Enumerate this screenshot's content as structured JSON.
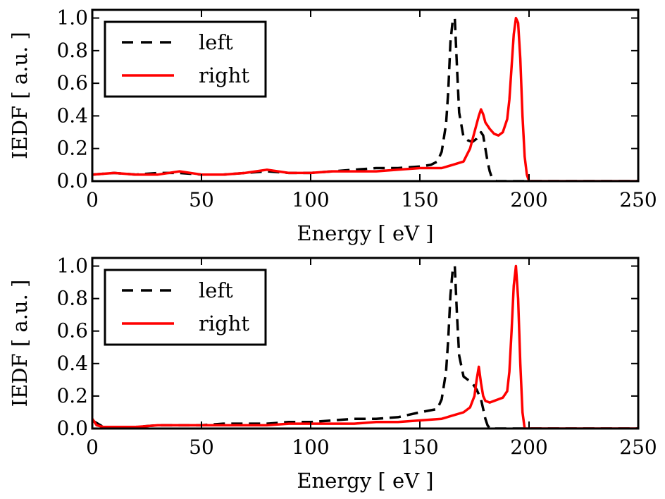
{
  "chart_data": [
    {
      "type": "line",
      "xlabel": "Energy [ eV ]",
      "ylabel": "IEDF [ a.u. ]",
      "xlim": [
        0,
        250
      ],
      "ylim": [
        0,
        1.05
      ],
      "xticks": [
        0,
        50,
        100,
        150,
        200,
        250
      ],
      "xtick_labels": [
        "0",
        "50",
        "100",
        "150",
        "200",
        "250"
      ],
      "yticks": [
        0.0,
        0.2,
        0.4,
        0.6,
        0.8,
        1.0
      ],
      "ytick_labels": [
        "0.0",
        "0.2",
        "0.4",
        "0.6",
        "0.8",
        "1.0"
      ],
      "legend_position": "top-left",
      "series": [
        {
          "name": "left",
          "color": "#000000",
          "style": "dashed",
          "x": [
            0,
            10,
            20,
            30,
            40,
            50,
            60,
            70,
            80,
            90,
            100,
            110,
            120,
            130,
            140,
            150,
            155,
            158,
            160,
            162,
            163,
            164,
            165,
            166,
            167,
            168,
            170,
            172,
            174,
            176,
            178,
            179,
            180,
            181,
            182,
            183,
            185,
            190,
            200,
            250
          ],
          "y": [
            0.04,
            0.05,
            0.04,
            0.05,
            0.05,
            0.04,
            0.04,
            0.05,
            0.06,
            0.05,
            0.05,
            0.06,
            0.07,
            0.08,
            0.08,
            0.09,
            0.1,
            0.12,
            0.18,
            0.35,
            0.55,
            0.85,
            0.98,
            1.0,
            0.7,
            0.42,
            0.27,
            0.25,
            0.24,
            0.26,
            0.3,
            0.28,
            0.2,
            0.12,
            0.06,
            0.02,
            0.0,
            0.0,
            0.0,
            0.0
          ]
        },
        {
          "name": "right",
          "color": "#ff0000",
          "style": "solid",
          "x": [
            0,
            10,
            20,
            30,
            40,
            50,
            60,
            70,
            80,
            90,
            100,
            110,
            120,
            130,
            140,
            150,
            160,
            165,
            170,
            173,
            175,
            177,
            178,
            179,
            180,
            182,
            184,
            186,
            188,
            190,
            191,
            192,
            193,
            194,
            195,
            196,
            197,
            198,
            199,
            200,
            210,
            250
          ],
          "y": [
            0.04,
            0.05,
            0.04,
            0.04,
            0.06,
            0.04,
            0.04,
            0.05,
            0.07,
            0.05,
            0.05,
            0.06,
            0.06,
            0.06,
            0.07,
            0.08,
            0.08,
            0.1,
            0.12,
            0.2,
            0.3,
            0.4,
            0.44,
            0.41,
            0.36,
            0.32,
            0.29,
            0.28,
            0.3,
            0.38,
            0.5,
            0.7,
            0.9,
            1.0,
            0.97,
            0.75,
            0.4,
            0.15,
            0.04,
            0.0,
            0.0,
            0.0
          ]
        }
      ]
    },
    {
      "type": "line",
      "xlabel": "Energy [ eV ]",
      "ylabel": "IEDF [ a.u. ]",
      "xlim": [
        0,
        250
      ],
      "ylim": [
        0,
        1.05
      ],
      "xticks": [
        0,
        50,
        100,
        150,
        200,
        250
      ],
      "xtick_labels": [
        "0",
        "50",
        "100",
        "150",
        "200",
        "250"
      ],
      "yticks": [
        0.0,
        0.2,
        0.4,
        0.6,
        0.8,
        1.0
      ],
      "ytick_labels": [
        "0.0",
        "0.2",
        "0.4",
        "0.6",
        "0.8",
        "1.0"
      ],
      "legend_position": "top-left",
      "series": [
        {
          "name": "left",
          "color": "#000000",
          "style": "dashed",
          "x": [
            0,
            5,
            10,
            20,
            30,
            40,
            50,
            60,
            70,
            80,
            90,
            100,
            110,
            120,
            130,
            140,
            150,
            158,
            160,
            162,
            163,
            164,
            165,
            166,
            167,
            168,
            170,
            172,
            174,
            176,
            178,
            179,
            180,
            181,
            182,
            185,
            190,
            200,
            250
          ],
          "y": [
            0.05,
            0.01,
            0.01,
            0.01,
            0.02,
            0.02,
            0.02,
            0.03,
            0.03,
            0.03,
            0.04,
            0.04,
            0.05,
            0.06,
            0.06,
            0.07,
            0.1,
            0.12,
            0.18,
            0.35,
            0.55,
            0.82,
            0.97,
            1.0,
            0.7,
            0.45,
            0.32,
            0.3,
            0.28,
            0.24,
            0.18,
            0.12,
            0.06,
            0.02,
            0.0,
            0.0,
            0.0,
            0.0,
            0.0
          ]
        },
        {
          "name": "right",
          "color": "#ff0000",
          "style": "solid",
          "x": [
            0,
            2,
            5,
            10,
            20,
            30,
            40,
            50,
            60,
            70,
            80,
            90,
            100,
            110,
            120,
            130,
            140,
            150,
            160,
            165,
            170,
            173,
            175,
            176,
            177,
            178,
            179,
            180,
            182,
            184,
            186,
            188,
            190,
            191,
            192,
            193,
            194,
            195,
            196,
            197,
            198,
            210,
            250
          ],
          "y": [
            0.06,
            0.02,
            0.01,
            0.01,
            0.01,
            0.02,
            0.02,
            0.02,
            0.02,
            0.02,
            0.02,
            0.03,
            0.03,
            0.03,
            0.03,
            0.04,
            0.04,
            0.05,
            0.06,
            0.08,
            0.1,
            0.13,
            0.2,
            0.3,
            0.38,
            0.28,
            0.2,
            0.17,
            0.16,
            0.17,
            0.18,
            0.19,
            0.23,
            0.35,
            0.6,
            0.88,
            1.0,
            0.8,
            0.4,
            0.1,
            0.0,
            0.0,
            0.0
          ]
        }
      ]
    }
  ]
}
